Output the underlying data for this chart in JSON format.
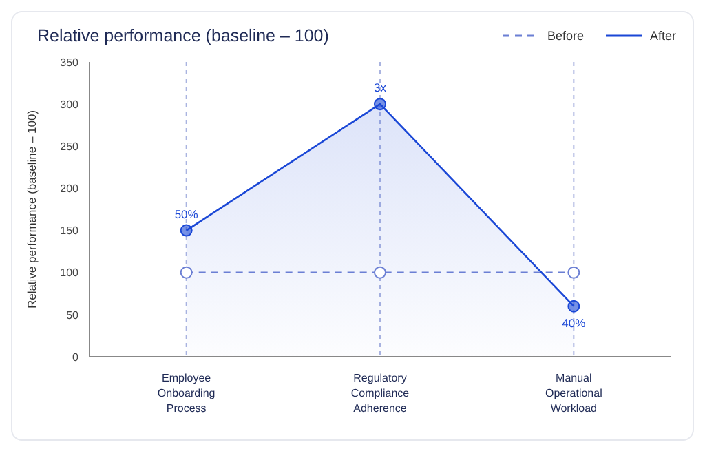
{
  "chart_data": {
    "type": "line",
    "title": "Relative performance (baseline – 100)",
    "ylabel": "Relative performance (baseline – 100)",
    "categories": [
      "Employee Onboarding Process",
      "Regulatory Compliance Adherence",
      "Manual Operational Workload"
    ],
    "series": [
      {
        "name": "Before",
        "color": "#6b7fd4",
        "values": [
          100,
          100,
          100
        ],
        "line_style": "dashed"
      },
      {
        "name": "After",
        "type": "area",
        "color": "#1a47d6",
        "values": [
          150,
          300,
          60
        ],
        "line_style": "solid"
      }
    ],
    "annotations": [
      {
        "text": "50%",
        "x": "Employee Onboarding Process",
        "y": 150
      },
      {
        "text": "3x",
        "x": "Regulatory Compliance Adherence",
        "y": 300
      },
      {
        "text": "40%",
        "x": "Manual Operational Workload",
        "y": 60
      }
    ],
    "ylim": [
      0,
      350
    ],
    "yticks": [
      0,
      50,
      100,
      150,
      200,
      250,
      300,
      350
    ],
    "grid": "x",
    "legend": "top right",
    "marker": "circle"
  }
}
